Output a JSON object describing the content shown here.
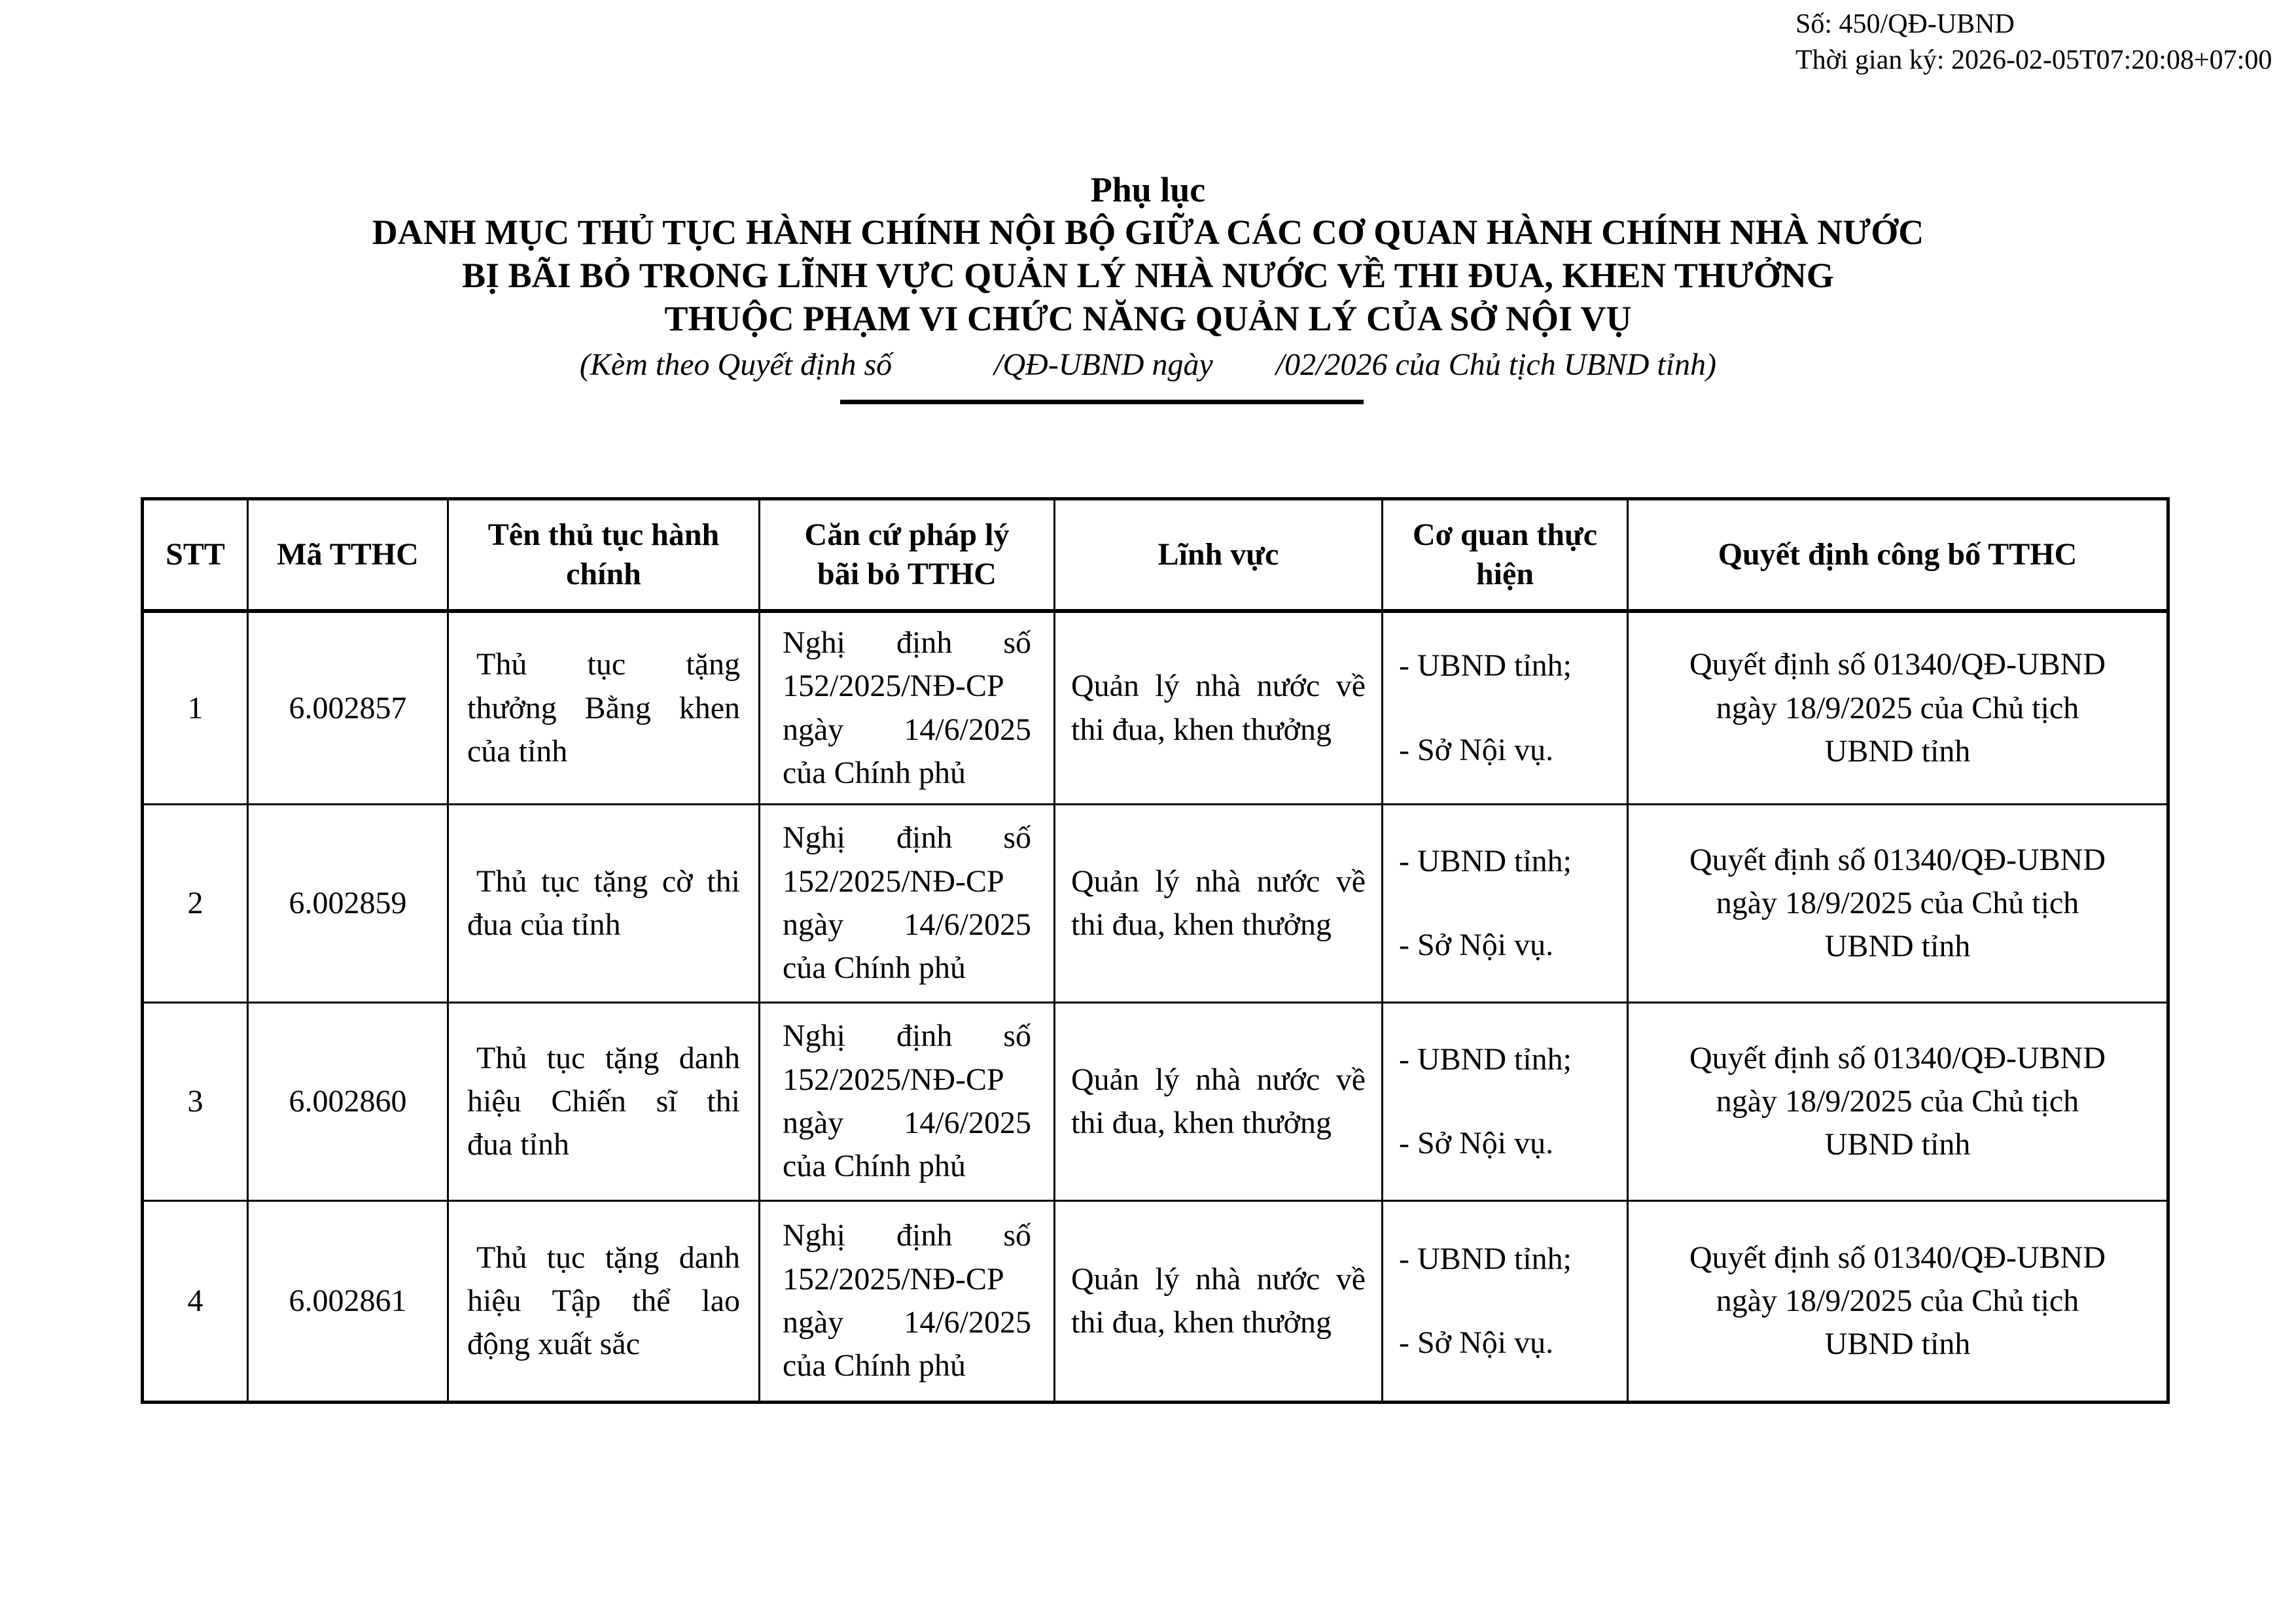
{
  "header": {
    "so": "Số: 450/QĐ-UBND",
    "thoi_gian_ky": "Thời gian ký: 2026-02-05T07:20:08+07:00"
  },
  "title": {
    "phu_luc": "Phụ lục",
    "line1": "DANH MỤC THỦ TỤC HÀNH CHÍNH NỘI BỘ GIỮA CÁC CƠ QUAN HÀNH CHÍNH NHÀ NƯỚC",
    "line2": "BỊ BÃI BỎ TRONG LĨNH VỰC QUẢN LÝ NHÀ NƯỚC VỀ THI ĐUA, KHEN THƯỞNG",
    "line3": "THUỘC PHẠM VI CHỨC NĂNG QUẢN LÝ CỦA SỞ NỘI VỤ",
    "subtitle": "(Kèm theo Quyết định số             /QĐ-UBND ngày        /02/2026 của Chủ tịch UBND tỉnh)"
  },
  "table": {
    "headers": {
      "stt": "STT",
      "ma_tthc": "Mã TTHC",
      "ten": "Tên thủ tục hành\nchính",
      "can_cu": "Căn cứ pháp lý\nbãi bỏ TTHC",
      "linh_vuc": "Lĩnh vực",
      "co_quan": "Cơ quan thực\nhiện",
      "quyet_dinh": "Quyết định công bố TTHC"
    },
    "rows": [
      {
        "stt": "1",
        "ma": "6.002857",
        "ten": "Thủ tục tặng\nthưởng Bằng khen\ncủa tỉnh",
        "can_cu": "Nghị định số\n152/2025/NĐ-CP\nngày 14/6/2025\ncủa Chính phủ",
        "linh_vuc": "Quản lý nhà nước về\nthi đua, khen thưởng",
        "co_quan": "- UBND tỉnh;\n- Sở Nội vụ.",
        "quyet_dinh": "Quyết định số 01340/QĐ-UBND\nngày 18/9/2025 của Chủ tịch\nUBND tỉnh"
      },
      {
        "stt": "2",
        "ma": "6.002859",
        "ten": "Thủ tục tặng cờ thi\nđua của tỉnh",
        "can_cu": "Nghị định số\n152/2025/NĐ-CP\nngày 14/6/2025\ncủa Chính phủ",
        "linh_vuc": "Quản lý nhà nước về\nthi đua, khen thưởng",
        "co_quan": "- UBND tỉnh;\n- Sở Nội vụ.",
        "quyet_dinh": "Quyết định số 01340/QĐ-UBND\nngày 18/9/2025 của Chủ tịch\nUBND tỉnh"
      },
      {
        "stt": "3",
        "ma": "6.002860",
        "ten": "Thủ tục tặng danh\nhiệu Chiến sĩ thi\nđua tỉnh",
        "can_cu": "Nghị định số\n152/2025/NĐ-CP\nngày 14/6/2025\ncủa Chính phủ",
        "linh_vuc": "Quản lý nhà nước về\nthi đua, khen thưởng",
        "co_quan": "- UBND tỉnh;\n- Sở Nội vụ.",
        "quyet_dinh": "Quyết định số 01340/QĐ-UBND\nngày 18/9/2025 của Chủ tịch\nUBND tỉnh"
      },
      {
        "stt": "4",
        "ma": "6.002861",
        "ten": "Thủ tục tặng danh\nhiệu Tập thể lao\nđộng xuất sắc",
        "can_cu": "Nghị định số\n152/2025/NĐ-CP\nngày 14/6/2025\ncủa Chính phủ",
        "linh_vuc": "Quản lý nhà nước về\nthi đua, khen thưởng",
        "co_quan": "- UBND tỉnh;\n- Sở Nội vụ.",
        "quyet_dinh": "Quyết định số 01340/QĐ-UBND\nngày 18/9/2025 của Chủ tịch\nUBND tỉnh"
      }
    ]
  }
}
